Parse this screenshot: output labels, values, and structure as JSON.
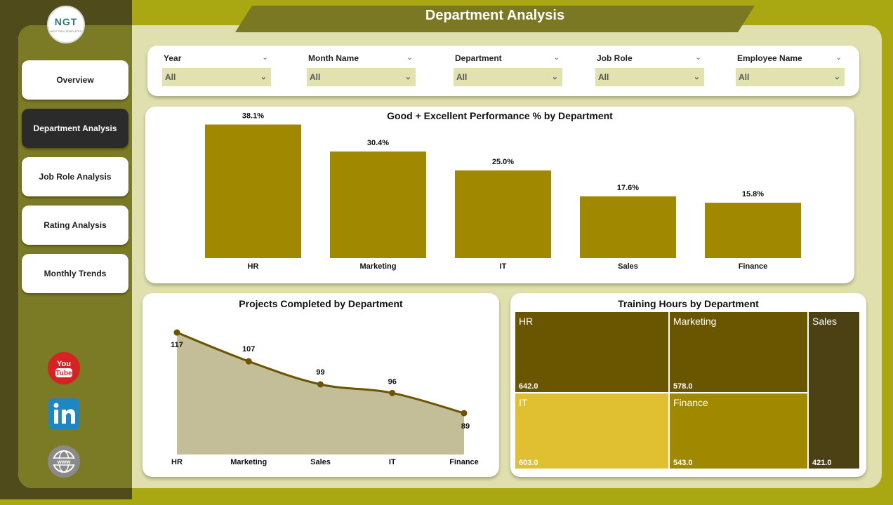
{
  "title": "Department Analysis",
  "logo": {
    "text": "NGT",
    "subtitle": "NEXT GEN TEMPLATES"
  },
  "nav": [
    {
      "label": "Overview",
      "active": false
    },
    {
      "label": "Department Analysis",
      "active": true
    },
    {
      "label": "Job Role Analysis",
      "active": false
    },
    {
      "label": "Rating Analysis",
      "active": false
    },
    {
      "label": "Monthly Trends",
      "active": false
    }
  ],
  "social": [
    {
      "name": "youtube-icon",
      "text": "You Tube"
    },
    {
      "name": "linkedin-icon",
      "text": "in"
    },
    {
      "name": "website-icon",
      "text": "www"
    }
  ],
  "filters": [
    {
      "label": "Year",
      "value": "All"
    },
    {
      "label": "Month Name",
      "value": "All"
    },
    {
      "label": "Department",
      "value": "All"
    },
    {
      "label": "Job Role",
      "value": "All"
    },
    {
      "label": "Employee Name",
      "value": "All"
    }
  ],
  "colors": {
    "bar": "#a08800",
    "area_fill": "#c4be98",
    "line": "#6b5500",
    "background": "#a9a812",
    "sidebar": "#7b7a25"
  },
  "chart_data": [
    {
      "type": "bar",
      "title": "Good + Excellent Performance % by Department",
      "categories": [
        "HR",
        "Marketing",
        "IT",
        "Sales",
        "Finance"
      ],
      "values": [
        38.1,
        30.4,
        25.0,
        17.6,
        15.8
      ],
      "labels": [
        "38.1%",
        "30.4%",
        "25.0%",
        "17.6%",
        "15.8%"
      ],
      "ylim": [
        0,
        40
      ]
    },
    {
      "type": "area",
      "title": "Projects Completed by Department",
      "categories": [
        "HR",
        "Marketing",
        "Sales",
        "IT",
        "Finance"
      ],
      "values": [
        117,
        107,
        99,
        96,
        89
      ],
      "labels": [
        "117",
        "107",
        "99",
        "96",
        "89"
      ],
      "ylim": [
        80,
        118
      ]
    },
    {
      "type": "treemap",
      "title": "Training Hours by Department",
      "items": [
        {
          "name": "HR",
          "value": 642.0,
          "label": "642.0",
          "color": "#6b5600"
        },
        {
          "name": "Marketing",
          "value": 578.0,
          "label": "578.0",
          "color": "#6b5600"
        },
        {
          "name": "Sales",
          "value": 421.0,
          "label": "421.0",
          "color": "#4c4115"
        },
        {
          "name": "IT",
          "value": 603.0,
          "label": "603.0",
          "color": "#e0bf30"
        },
        {
          "name": "Finance",
          "value": 543.0,
          "label": "543.0",
          "color": "#a08800"
        }
      ]
    }
  ]
}
